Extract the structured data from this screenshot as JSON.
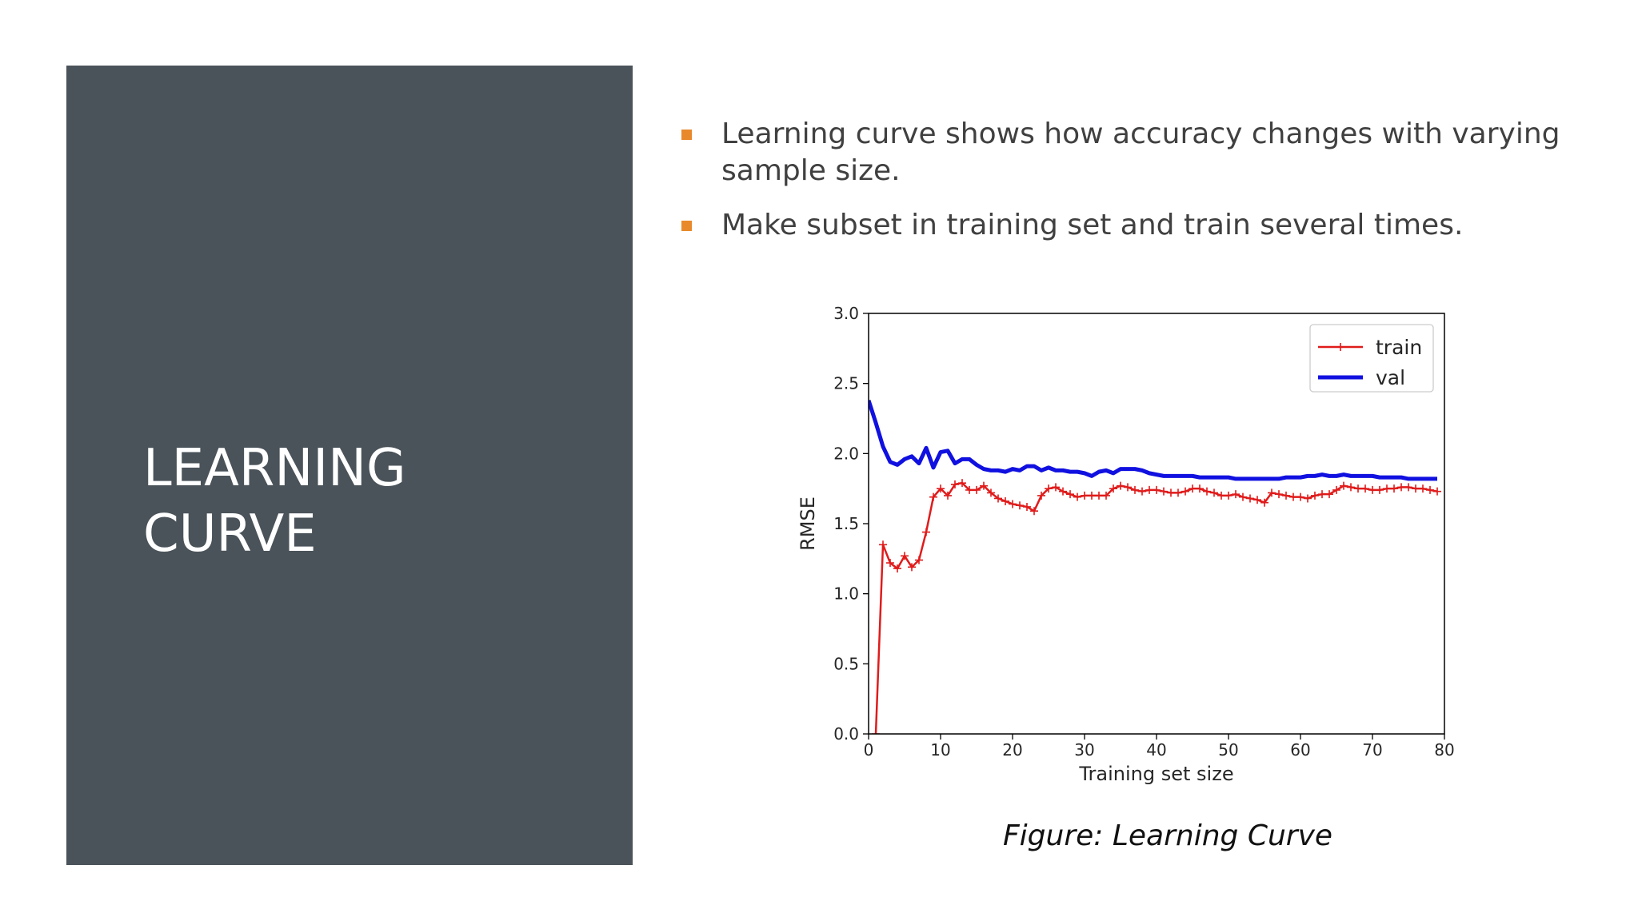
{
  "slide": {
    "title_lines": [
      "LEARNING",
      "CURVE"
    ],
    "bullets": [
      "Learning curve shows how accuracy changes with varying sample size.",
      "Make subset in training set and train several times."
    ],
    "caption": "Figure: Learning Curve",
    "colors": {
      "panel": "#4a5359",
      "bullet_marker": "#e8892b"
    }
  },
  "chart_data": {
    "type": "line",
    "xlabel": "Training set size",
    "ylabel": "RMSE",
    "xlim": [
      0,
      80
    ],
    "ylim": [
      0,
      3.0
    ],
    "xticks": [
      "0",
      "10",
      "20",
      "30",
      "40",
      "50",
      "60",
      "70",
      "80"
    ],
    "yticks": [
      "0.0",
      "0.5",
      "1.0",
      "1.5",
      "2.0",
      "2.5",
      "3.0"
    ],
    "grid": false,
    "legend_position": "top-right",
    "series": [
      {
        "name": "train",
        "color": "#e01b1b",
        "marker": "+",
        "x": [
          1,
          2,
          3,
          4,
          5,
          6,
          7,
          8,
          9,
          10,
          11,
          12,
          13,
          14,
          15,
          16,
          17,
          18,
          19,
          20,
          21,
          22,
          23,
          24,
          25,
          26,
          27,
          28,
          29,
          30,
          31,
          32,
          33,
          34,
          35,
          36,
          37,
          38,
          39,
          40,
          41,
          42,
          43,
          44,
          45,
          46,
          47,
          48,
          49,
          50,
          51,
          52,
          53,
          54,
          55,
          56,
          57,
          58,
          59,
          60,
          61,
          62,
          63,
          64,
          65,
          66,
          67,
          68,
          69,
          70,
          71,
          72,
          73,
          74,
          75,
          76,
          77,
          78,
          79
        ],
        "y": [
          0.0,
          1.35,
          1.22,
          1.18,
          1.27,
          1.19,
          1.24,
          1.44,
          1.69,
          1.75,
          1.7,
          1.78,
          1.79,
          1.74,
          1.74,
          1.77,
          1.72,
          1.68,
          1.66,
          1.64,
          1.63,
          1.62,
          1.59,
          1.7,
          1.75,
          1.76,
          1.73,
          1.71,
          1.69,
          1.7,
          1.7,
          1.7,
          1.7,
          1.75,
          1.77,
          1.76,
          1.74,
          1.73,
          1.74,
          1.74,
          1.73,
          1.72,
          1.72,
          1.73,
          1.75,
          1.75,
          1.73,
          1.72,
          1.7,
          1.7,
          1.71,
          1.69,
          1.68,
          1.67,
          1.65,
          1.72,
          1.71,
          1.7,
          1.69,
          1.69,
          1.68,
          1.7,
          1.71,
          1.71,
          1.74,
          1.77,
          1.76,
          1.75,
          1.75,
          1.74,
          1.74,
          1.75,
          1.75,
          1.76,
          1.76,
          1.75,
          1.75,
          1.74,
          1.73
        ]
      },
      {
        "name": "val",
        "color": "#1010e0",
        "marker": "",
        "x": [
          0,
          1,
          2,
          3,
          4,
          5,
          6,
          7,
          8,
          9,
          10,
          11,
          12,
          13,
          14,
          15,
          16,
          17,
          18,
          19,
          20,
          21,
          22,
          23,
          24,
          25,
          26,
          27,
          28,
          29,
          30,
          31,
          32,
          33,
          34,
          35,
          36,
          37,
          38,
          39,
          40,
          41,
          42,
          43,
          44,
          45,
          46,
          47,
          48,
          49,
          50,
          51,
          52,
          53,
          54,
          55,
          56,
          57,
          58,
          59,
          60,
          61,
          62,
          63,
          64,
          65,
          66,
          67,
          68,
          69,
          70,
          71,
          72,
          73,
          74,
          75,
          76,
          77,
          78,
          79
        ],
        "y": [
          2.38,
          2.22,
          2.05,
          1.94,
          1.92,
          1.96,
          1.98,
          1.93,
          2.04,
          1.9,
          2.01,
          2.02,
          1.93,
          1.96,
          1.96,
          1.92,
          1.89,
          1.88,
          1.88,
          1.87,
          1.89,
          1.88,
          1.91,
          1.91,
          1.88,
          1.9,
          1.88,
          1.88,
          1.87,
          1.87,
          1.86,
          1.84,
          1.87,
          1.88,
          1.86,
          1.89,
          1.89,
          1.89,
          1.88,
          1.86,
          1.85,
          1.84,
          1.84,
          1.84,
          1.84,
          1.84,
          1.83,
          1.83,
          1.83,
          1.83,
          1.83,
          1.82,
          1.82,
          1.82,
          1.82,
          1.82,
          1.82,
          1.82,
          1.83,
          1.83,
          1.83,
          1.84,
          1.84,
          1.85,
          1.84,
          1.84,
          1.85,
          1.84,
          1.84,
          1.84,
          1.84,
          1.83,
          1.83,
          1.83,
          1.83,
          1.82,
          1.82,
          1.82,
          1.82,
          1.82
        ]
      }
    ]
  }
}
